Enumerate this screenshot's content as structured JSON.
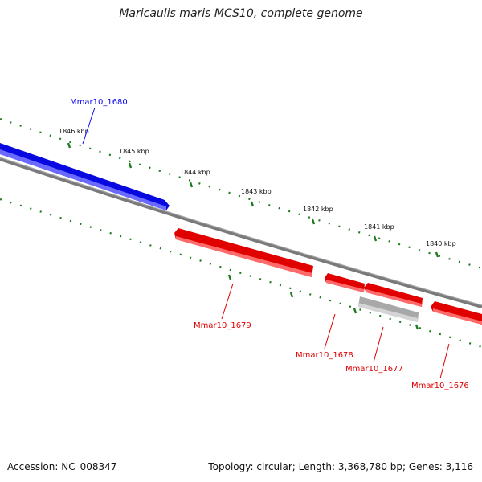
{
  "title": "Maricaulis maris MCS10, complete genome",
  "footer": {
    "accession": "Accession: NC_008347",
    "summary": "Topology: circular; Length: 3,368,780 bp; Genes: 3,116"
  },
  "ticks": [
    "1846 kbp",
    "1845 kbp",
    "1844 kbp",
    "1843 kbp",
    "1842 kbp",
    "1841 kbp",
    "1840 kbp"
  ],
  "genes": [
    {
      "name": "Mmar10_1680",
      "strand": "forward",
      "color": "#0a0aef"
    },
    {
      "name": "Mmar10_1679",
      "strand": "reverse",
      "color": "#e00000"
    },
    {
      "name": "Mmar10_1678",
      "strand": "reverse",
      "color": "#e00000"
    },
    {
      "name": "Mmar10_1677",
      "strand": "reverse",
      "color": "#e00000"
    },
    {
      "name": "Mmar10_1676",
      "strand": "reverse",
      "color": "#e00000"
    }
  ],
  "colors": {
    "forward": "#0a0aef",
    "reverse": "#e00000",
    "other": "#b4b4b4",
    "backbone": "#808080",
    "ticks": "#1e7a1e"
  }
}
